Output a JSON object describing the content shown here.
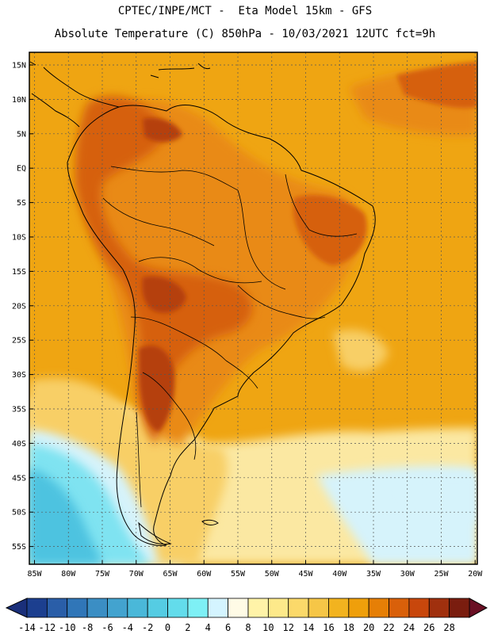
{
  "title_line1": "CPTEC/INPE/MCT -  Eta Model 15km - GFS",
  "title_line2": "Absolute Temperature (C) 850hPa - 10/03/2021 12UTC fct=9h",
  "lat_labels": [
    "15N",
    "10N",
    "5N",
    "EQ",
    "5S",
    "10S",
    "15S",
    "20S",
    "25S",
    "30S",
    "35S",
    "40S",
    "45S",
    "50S",
    "55S"
  ],
  "lon_labels": [
    "85W",
    "80W",
    "75W",
    "70W",
    "65W",
    "60W",
    "55W",
    "50W",
    "45W",
    "40W",
    "35W",
    "30W",
    "25W",
    "20W"
  ],
  "colorbar": {
    "labels": [
      "-14",
      "-12",
      "-10",
      "-8",
      "-6",
      "-4",
      "-2",
      "0",
      "2",
      "4",
      "6",
      "8",
      "10",
      "12",
      "14",
      "16",
      "18",
      "20",
      "22",
      "24",
      "26",
      "28"
    ],
    "colors": [
      "#1c3f8f",
      "#2a5ea8",
      "#3076b8",
      "#3b8ec4",
      "#43a3cf",
      "#4ab8d9",
      "#55cce3",
      "#63dceb",
      "#7ef0f5",
      "#d4f4ff",
      "#fffbe6",
      "#fff3a8",
      "#fde98a",
      "#fbd96a",
      "#f6c647",
      "#f2b31f",
      "#ef9f0b",
      "#e67f06",
      "#d9600a",
      "#c8470c",
      "#a0300e",
      "#7a1d0f"
    ],
    "low_color": "#1a2f7a",
    "high_color": "#6a0f24"
  },
  "colors": {
    "background_field": "#efa512",
    "warm_field": "#e98a13",
    "hot_field": "#d6600f",
    "very_hot_field": "#b5410f",
    "cool_field": "#f8cf66",
    "cooler_field": "#fbe8a2",
    "cold_field": "#d6f3fb",
    "colder_field": "#7fe3f1",
    "coldest_field": "#4ec3e0"
  }
}
